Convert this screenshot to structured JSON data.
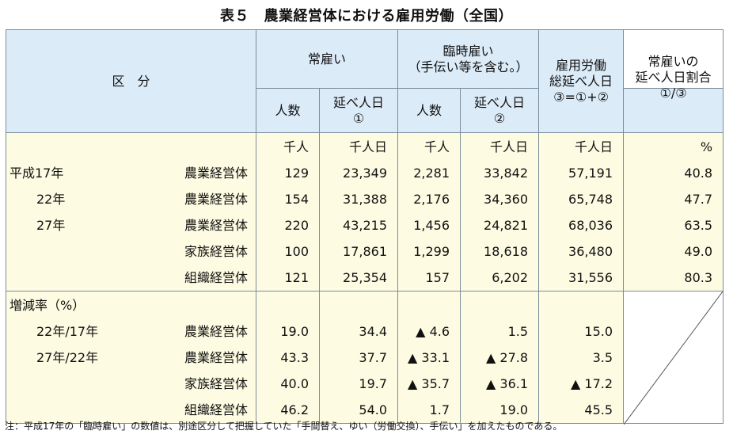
{
  "title": "表５　農業経営体における雇用労働（全国）",
  "header": {
    "kubun": "区　分",
    "jokoi": "常雇い",
    "rinji_1": "臨時雇い",
    "rinji_2": "（手伝い等を含む。）",
    "total_1": "雇用労働",
    "total_2": "総延べ人日",
    "total_3": "③=①+②",
    "ratio_1": "常雇いの",
    "ratio_2": "延べ人日割合",
    "ratio_3": "①/③",
    "ninzu": "人数",
    "nobe": "延べ人日",
    "mark1": "①",
    "mark2": "②"
  },
  "units": [
    "千人",
    "千人日",
    "千人",
    "千人日",
    "千人日",
    "%"
  ],
  "block1": {
    "rows": [
      {
        "year": "平成17年",
        "entity": "農業経営体",
        "values": [
          "129",
          "23,349",
          "2,281",
          "33,842",
          "57,191",
          "40.8"
        ]
      },
      {
        "year": "22年",
        "entity": "農業経営体",
        "values": [
          "154",
          "31,388",
          "2,176",
          "34,360",
          "65,748",
          "47.7"
        ]
      },
      {
        "year": "27年",
        "entity": "農業経営体",
        "values": [
          "220",
          "43,215",
          "1,456",
          "24,821",
          "68,036",
          "63.5"
        ]
      },
      {
        "year": "",
        "entity": "家族経営体",
        "values": [
          "100",
          "17,861",
          "1,299",
          "18,618",
          "36,480",
          "49.0"
        ]
      },
      {
        "year": "",
        "entity": "組織経営体",
        "values": [
          "121",
          "25,354",
          "157",
          "6,202",
          "31,556",
          "80.3"
        ]
      }
    ]
  },
  "block2": {
    "heading": "増減率（%）",
    "rows": [
      {
        "year": "22年/17年",
        "entity": "農業経営体",
        "values": [
          "19.0",
          "34.4",
          "▲ 4.6",
          "1.5",
          "15.0"
        ]
      },
      {
        "year": "27年/22年",
        "entity": "農業経営体",
        "values": [
          "43.3",
          "37.7",
          "▲ 33.1",
          "▲ 27.8",
          "3.5"
        ]
      },
      {
        "year": "",
        "entity": "家族経営体",
        "values": [
          "40.0",
          "19.7",
          "▲ 35.7",
          "▲ 36.1",
          "▲ 17.2"
        ]
      },
      {
        "year": "",
        "entity": "組織経営体",
        "values": [
          "46.2",
          "54.0",
          "1.7",
          "19.0",
          "45.5"
        ]
      }
    ]
  },
  "note": "注：平成17年の「臨時雇い」の数値は、別途区分して把握していた「手間替え、ゆい（労働交換）、手伝い」を加えたものである。"
}
